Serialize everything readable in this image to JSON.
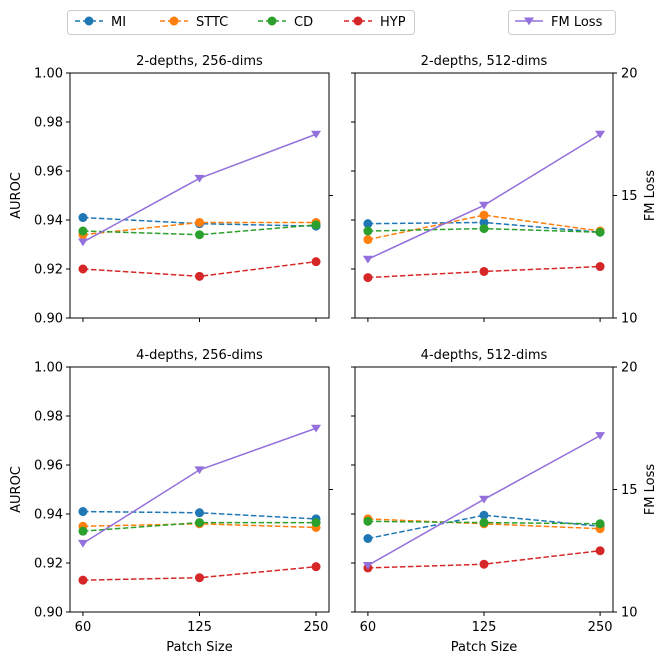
{
  "legend": {
    "left_items": [
      {
        "label": "MI",
        "color": "#1f77b4",
        "marker": "circle",
        "dashed": true
      },
      {
        "label": "STTC",
        "color": "#ff7f0e",
        "marker": "circle",
        "dashed": true
      },
      {
        "label": "CD",
        "color": "#2ca02c",
        "marker": "circle",
        "dashed": true
      },
      {
        "label": "HYP",
        "color": "#d62728",
        "marker": "circle",
        "dashed": true
      }
    ],
    "right_item": {
      "label": "FM Loss",
      "color": "#9370db",
      "marker": "triangle-down",
      "dashed": false
    }
  },
  "chart_data": [
    {
      "type": "line",
      "title": "2-depths, 256-dims",
      "xlabel": "",
      "ylabel": "AUROC",
      "y2label": "",
      "x": [
        60,
        125,
        250
      ],
      "x_tick_labels": [],
      "y_ticks": [],
      "ylim": [
        0.9,
        1.0
      ],
      "y2lim": [
        10,
        20
      ],
      "series": [
        {
          "name": "MI",
          "values": [
            0.941,
            0.9385,
            0.9375
          ]
        },
        {
          "name": "STTC",
          "values": [
            0.934,
            0.939,
            0.939
          ]
        },
        {
          "name": "CD",
          "values": [
            0.9355,
            0.934,
            0.938
          ]
        },
        {
          "name": "HYP",
          "values": [
            0.92,
            0.917,
            0.923
          ]
        }
      ],
      "y2_series": {
        "name": "FM Loss",
        "values": [
          13.1,
          15.7,
          17.5
        ]
      }
    },
    {
      "type": "line",
      "title": "2-depths, 512-dims",
      "xlabel": "",
      "ylabel": "",
      "y2label": "FM Loss",
      "x": [
        60,
        125,
        250
      ],
      "x_tick_labels": [],
      "y_ticks": [],
      "ylim": [
        0.9,
        1.0
      ],
      "y2lim": [
        10,
        20
      ],
      "series": [
        {
          "name": "MI",
          "values": [
            0.9385,
            0.939,
            0.935
          ]
        },
        {
          "name": "STTC",
          "values": [
            0.932,
            0.942,
            0.9355
          ]
        },
        {
          "name": "CD",
          "values": [
            0.9355,
            0.9365,
            0.935
          ]
        },
        {
          "name": "HYP",
          "values": [
            0.9165,
            0.919,
            0.921
          ]
        }
      ],
      "y2_series": {
        "name": "FM Loss",
        "values": [
          12.4,
          14.6,
          17.5
        ]
      }
    },
    {
      "type": "line",
      "title": "4-depths, 256-dims",
      "xlabel": "Patch Size",
      "ylabel": "AUROC",
      "y2label": "",
      "x": [
        60,
        125,
        250
      ],
      "x_tick_labels": [
        "60",
        "125",
        "250"
      ],
      "y_ticks": [],
      "ylim": [
        0.9,
        1.0
      ],
      "y2lim": [
        10,
        20
      ],
      "series": [
        {
          "name": "MI",
          "values": [
            0.941,
            0.9405,
            0.938
          ]
        },
        {
          "name": "STTC",
          "values": [
            0.935,
            0.936,
            0.9345
          ]
        },
        {
          "name": "CD",
          "values": [
            0.933,
            0.9365,
            0.9365
          ]
        },
        {
          "name": "HYP",
          "values": [
            0.913,
            0.914,
            0.9185
          ]
        }
      ],
      "y2_series": {
        "name": "FM Loss",
        "values": [
          12.8,
          15.8,
          17.5
        ]
      }
    },
    {
      "type": "line",
      "title": "4-depths, 512-dims",
      "xlabel": "Patch Size",
      "ylabel": "",
      "y2label": "FM Loss",
      "x": [
        60,
        125,
        250
      ],
      "x_tick_labels": [
        "60",
        "125",
        "250"
      ],
      "y_ticks": [],
      "ylim": [
        0.9,
        1.0
      ],
      "y2lim": [
        10,
        20
      ],
      "series": [
        {
          "name": "MI",
          "values": [
            0.93,
            0.9395,
            0.935
          ]
        },
        {
          "name": "STTC",
          "values": [
            0.938,
            0.936,
            0.934
          ]
        },
        {
          "name": "CD",
          "values": [
            0.937,
            0.9365,
            0.936
          ]
        },
        {
          "name": "HYP",
          "values": [
            0.918,
            0.9195,
            0.925
          ]
        }
      ],
      "y2_series": {
        "name": "FM Loss",
        "values": [
          11.9,
          14.6,
          17.2
        ]
      }
    }
  ],
  "axis_text": {
    "left_ticks": [
      "0.90",
      "0.92",
      "0.94",
      "0.96",
      "0.98",
      "1.00"
    ],
    "right_ticks": [
      "10",
      "15",
      "20"
    ]
  }
}
